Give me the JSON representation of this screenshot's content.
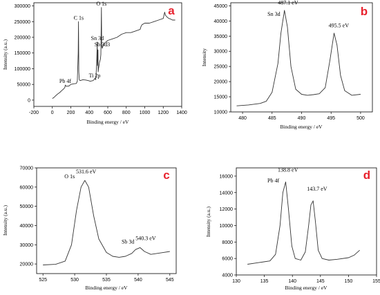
{
  "chart_data": [
    {
      "type": "line",
      "panel_label": "a",
      "xlabel": "Binding energy / eV",
      "ylabel": "Intensity (a.u.)",
      "xlim": [
        -200,
        1400
      ],
      "ylim": [
        -20000,
        310000
      ],
      "xticks": [
        -200,
        0,
        200,
        400,
        600,
        800,
        1000,
        1200,
        1400
      ],
      "yticks": [
        0,
        50000,
        100000,
        150000,
        200000,
        250000,
        300000
      ],
      "series": [
        {
          "x": [
            0,
            20,
            40,
            60,
            80,
            100,
            120,
            135,
            140,
            150,
            180,
            200,
            230,
            260,
            270,
            280,
            283,
            287,
            292,
            300,
            330,
            360,
            390,
            410,
            440,
            455,
            460,
            470,
            480,
            486,
            488,
            494,
            496,
            500,
            510,
            520,
            525,
            531,
            534,
            540,
            550,
            560,
            580,
            600,
            650,
            700,
            750,
            800,
            850,
            900,
            950,
            960,
            970,
            1000,
            1050,
            1100,
            1150,
            1200,
            1215,
            1225,
            1240,
            1260,
            1280,
            1300,
            1330
          ],
          "y": [
            5000,
            9000,
            15000,
            20000,
            24000,
            30000,
            35000,
            40000,
            48000,
            44000,
            45000,
            50000,
            52000,
            53000,
            60000,
            150000,
            250000,
            90000,
            65000,
            62000,
            65000,
            64000,
            62000,
            60000,
            62000,
            66000,
            70000,
            65000,
            115000,
            185000,
            110000,
            160000,
            90000,
            100000,
            120000,
            130000,
            145000,
            295000,
            170000,
            165000,
            175000,
            180000,
            185000,
            190000,
            195000,
            200000,
            210000,
            215000,
            215000,
            220000,
            225000,
            235000,
            240000,
            245000,
            245000,
            250000,
            255000,
            260000,
            280000,
            270000,
            265000,
            260000,
            258000,
            255000,
            255000
          ]
        }
      ],
      "annotations": [
        {
          "text": "O 1s",
          "x": 531,
          "y": 295000
        },
        {
          "text": "C 1s",
          "x": 285,
          "y": 250000
        },
        {
          "text": "Sn 3d",
          "x": 487,
          "y": 185000
        },
        {
          "text": "Sb 3d3",
          "x": 540,
          "y": 165000
        },
        {
          "text": "Pb 4f",
          "x": 140,
          "y": 48000
        },
        {
          "text": "Ti 2p",
          "x": 458,
          "y": 66000
        }
      ]
    },
    {
      "type": "line",
      "panel_label": "b",
      "xlabel": "Binding energy / eV",
      "ylabel": "Intensity",
      "xlim": [
        478,
        502
      ],
      "ylim": [
        10000,
        46000
      ],
      "xticks": [
        480,
        485,
        490,
        495,
        500
      ],
      "yticks": [
        10000,
        15000,
        20000,
        25000,
        30000,
        35000,
        40000,
        45000
      ],
      "series": [
        {
          "x": [
            479,
            481,
            483,
            484,
            485,
            486,
            486.5,
            487.1,
            487.6,
            488.2,
            489,
            490,
            491,
            492,
            493,
            494,
            494.8,
            495.5,
            496,
            496.6,
            497.3,
            498.5,
            500
          ],
          "y": [
            12000,
            12300,
            12800,
            13500,
            16500,
            26000,
            36000,
            43500,
            38000,
            25000,
            17500,
            15800,
            15500,
            15700,
            16000,
            18000,
            27000,
            36000,
            32000,
            22000,
            17000,
            15500,
            15800
          ]
        }
      ],
      "annotations": [
        {
          "text": "Sn 3d",
          "x": 485.3,
          "y": 41000
        },
        {
          "text": "487.1 eV",
          "x": 487.7,
          "y": 44800
        },
        {
          "text": "495.5 eV",
          "x": 496.3,
          "y": 37200
        }
      ]
    },
    {
      "type": "line",
      "panel_label": "c",
      "xlabel": "Binding energy / eV",
      "ylabel": "Intensity (a.u.)",
      "xlim": [
        524,
        546
      ],
      "ylim": [
        15000,
        70000
      ],
      "xticks": [
        525,
        530,
        535,
        540,
        545
      ],
      "yticks": [
        20000,
        30000,
        40000,
        50000,
        60000,
        70000
      ],
      "series": [
        {
          "x": [
            525,
            527,
            528.5,
            529.5,
            530.3,
            531,
            531.6,
            532.2,
            533,
            533.8,
            535,
            536,
            537,
            538,
            539,
            539.6,
            540.3,
            541,
            542,
            543,
            544,
            545
          ],
          "y": [
            19500,
            19800,
            21500,
            30000,
            48000,
            60000,
            63500,
            60000,
            45000,
            33000,
            26000,
            24000,
            23500,
            24000,
            25500,
            27500,
            28500,
            26500,
            25000,
            25500,
            26000,
            26500
          ]
        }
      ],
      "annotations": [
        {
          "text": "531.6 eV",
          "x": 531.8,
          "y": 66000
        },
        {
          "text": "O 1s",
          "x": 529.2,
          "y": 63500
        },
        {
          "text": "Sb 3d",
          "x": 538.4,
          "y": 29500
        },
        {
          "text": "540.3 eV",
          "x": 541.2,
          "y": 31300
        }
      ]
    },
    {
      "type": "line",
      "panel_label": "d",
      "xlabel": "Binding energy / eV",
      "ylabel": "Intensity (a.u.)",
      "xlim": [
        130,
        155
      ],
      "ylim": [
        4000,
        17000
      ],
      "xticks": [
        130,
        135,
        140,
        145,
        150,
        155
      ],
      "yticks": [
        4000,
        6000,
        8000,
        10000,
        12000,
        14000,
        16000
      ],
      "series": [
        {
          "x": [
            132,
            134,
            136,
            137,
            137.8,
            138.3,
            138.8,
            139.3,
            139.9,
            140.5,
            141.5,
            142.3,
            142.9,
            143.3,
            143.7,
            144.1,
            144.6,
            145.3,
            146.5,
            148,
            150,
            151,
            152
          ],
          "y": [
            5300,
            5500,
            5700,
            6500,
            10000,
            14000,
            15300,
            12000,
            7500,
            6000,
            5800,
            6800,
            10000,
            12500,
            13000,
            10500,
            7000,
            6000,
            5800,
            5900,
            6100,
            6400,
            7000
          ]
        }
      ],
      "annotations": [
        {
          "text": "138.8 eV",
          "x": 139.2,
          "y": 16300
        },
        {
          "text": "Pb 4f",
          "x": 136.6,
          "y": 15000
        },
        {
          "text": "143.7 eV",
          "x": 144.4,
          "y": 14000
        }
      ]
    }
  ]
}
